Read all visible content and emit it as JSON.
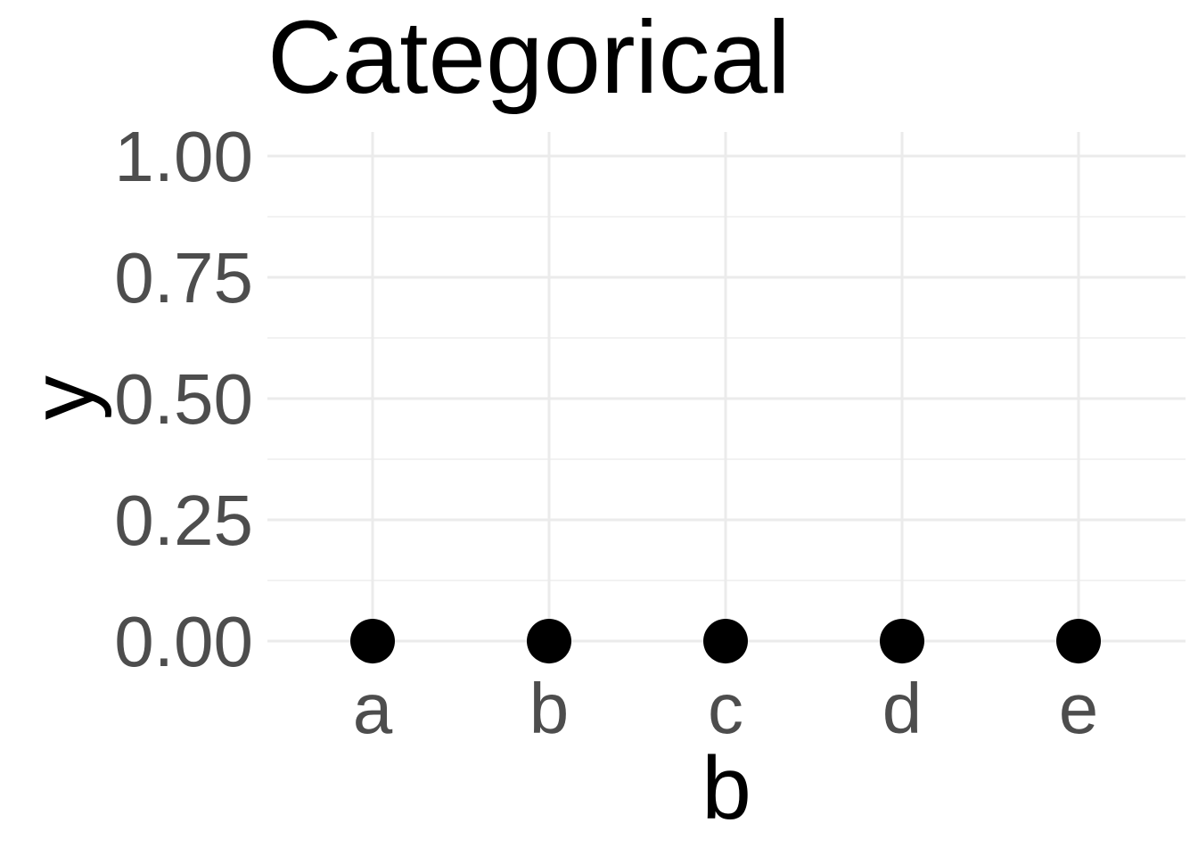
{
  "chart_data": {
    "type": "scatter",
    "title": "Categorical",
    "xlabel": "b",
    "ylabel": "y",
    "categories": [
      "a",
      "b",
      "c",
      "d",
      "e"
    ],
    "values": [
      0,
      0,
      0,
      0,
      0
    ],
    "ylim": [
      0,
      1
    ],
    "yticks": [
      0,
      0.25,
      0.5,
      0.75,
      1
    ],
    "ytick_labels": [
      "0.00",
      "0.25",
      "0.50",
      "0.75",
      "1.00"
    ],
    "grid": true,
    "legend": "none",
    "colors": {
      "point": "#000000",
      "grid_major": "#ebebeb",
      "grid_minor": "#f2f2f2",
      "tick_text": "#4d4d4d",
      "title_text": "#000000",
      "background": "#ffffff"
    }
  }
}
